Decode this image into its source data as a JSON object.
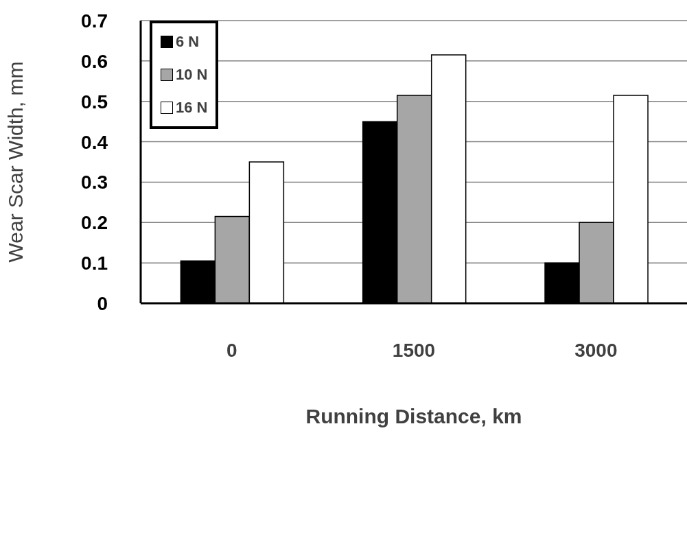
{
  "chart_data": {
    "type": "bar",
    "xlabel": "Running Distance, km",
    "ylabel": "Wear Scar Width, mm",
    "categories": [
      "0",
      "1500",
      "3000"
    ],
    "series": [
      {
        "name": "6 N",
        "color": "#000000",
        "values": [
          0.105,
          0.45,
          0.1
        ]
      },
      {
        "name": "10 N",
        "color": "#a6a6a6",
        "values": [
          0.215,
          0.515,
          0.2
        ]
      },
      {
        "name": "16 N",
        "color": "#ffffff",
        "values": [
          0.35,
          0.615,
          0.515
        ]
      }
    ],
    "ylim": [
      0,
      0.7
    ],
    "yticks": [
      0,
      0.1,
      0.2,
      0.3,
      0.4,
      0.5,
      0.6,
      0.7
    ],
    "grid": "y",
    "legend": "top left"
  }
}
